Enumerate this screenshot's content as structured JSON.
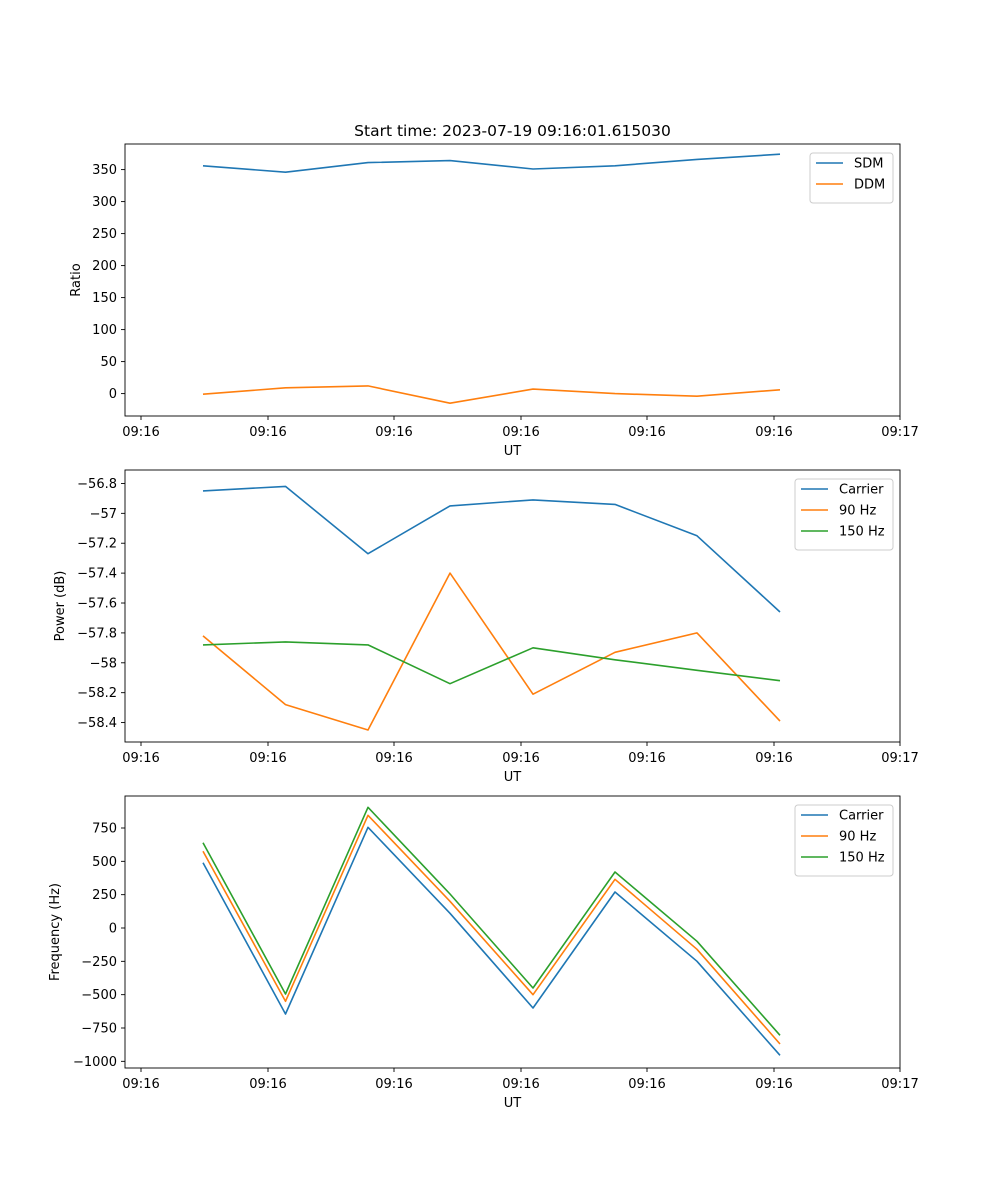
{
  "chart_data": [
    {
      "type": "line",
      "title": "Start time: 2023-07-19 09:16:01.615030",
      "xlabel": "UT",
      "ylabel": "Ratio",
      "x_tick_labels": [
        "09:16",
        "09:16",
        "09:16",
        "09:16",
        "09:16",
        "09:16",
        "09:17"
      ],
      "y_ticks": [
        0,
        50,
        100,
        150,
        200,
        250,
        300,
        350
      ],
      "ylim": [
        -35,
        390
      ],
      "legend_position": "upper-right",
      "series": [
        {
          "name": "SDM",
          "color": "#1f77b4",
          "values": [
            356,
            346,
            361,
            364,
            351,
            356,
            366,
            374
          ]
        },
        {
          "name": "DDM",
          "color": "#ff7f0e",
          "values": [
            -1,
            9,
            12,
            -15,
            7,
            0,
            -4,
            6
          ]
        }
      ]
    },
    {
      "type": "line",
      "title": "",
      "xlabel": "UT",
      "ylabel": "Power (dB)",
      "x_tick_labels": [
        "09:16",
        "09:16",
        "09:16",
        "09:16",
        "09:16",
        "09:16",
        "09:17"
      ],
      "y_ticks": [
        -58.4,
        -58.2,
        -58.0,
        -57.8,
        -57.6,
        -57.4,
        -57.2,
        -57.0,
        -56.8
      ],
      "ylim": [
        -58.53,
        -56.71
      ],
      "legend_position": "upper-right",
      "series": [
        {
          "name": "Carrier",
          "color": "#1f77b4",
          "values": [
            -56.85,
            -56.82,
            -57.27,
            -56.95,
            -56.91,
            -56.94,
            -57.15,
            -57.66
          ]
        },
        {
          "name": "90 Hz",
          "color": "#ff7f0e",
          "values": [
            -57.82,
            -58.28,
            -58.45,
            -57.4,
            -58.21,
            -57.93,
            -57.8,
            -58.39
          ]
        },
        {
          "name": "150 Hz",
          "color": "#2ca02c",
          "values": [
            -57.88,
            -57.86,
            -57.88,
            -58.14,
            -57.9,
            -57.98,
            -58.05,
            -58.12
          ]
        }
      ]
    },
    {
      "type": "line",
      "title": "",
      "xlabel": "UT",
      "ylabel": "Frequency (Hz)",
      "x_tick_labels": [
        "09:16",
        "09:16",
        "09:16",
        "09:16",
        "09:16",
        "09:16",
        "09:17"
      ],
      "y_ticks": [
        -1000,
        -750,
        -500,
        -250,
        0,
        250,
        500,
        750
      ],
      "ylim": [
        -1050,
        990
      ],
      "legend_position": "upper-right",
      "series": [
        {
          "name": "Carrier",
          "color": "#1f77b4",
          "values": [
            490,
            -645,
            755,
            110,
            -600,
            270,
            -250,
            -955
          ]
        },
        {
          "name": "90 Hz",
          "color": "#ff7f0e",
          "values": [
            575,
            -550,
            845,
            200,
            -500,
            365,
            -160,
            -870
          ]
        },
        {
          "name": "150 Hz",
          "color": "#2ca02c",
          "values": [
            640,
            -495,
            905,
            255,
            -450,
            420,
            -100,
            -805
          ]
        }
      ]
    }
  ]
}
